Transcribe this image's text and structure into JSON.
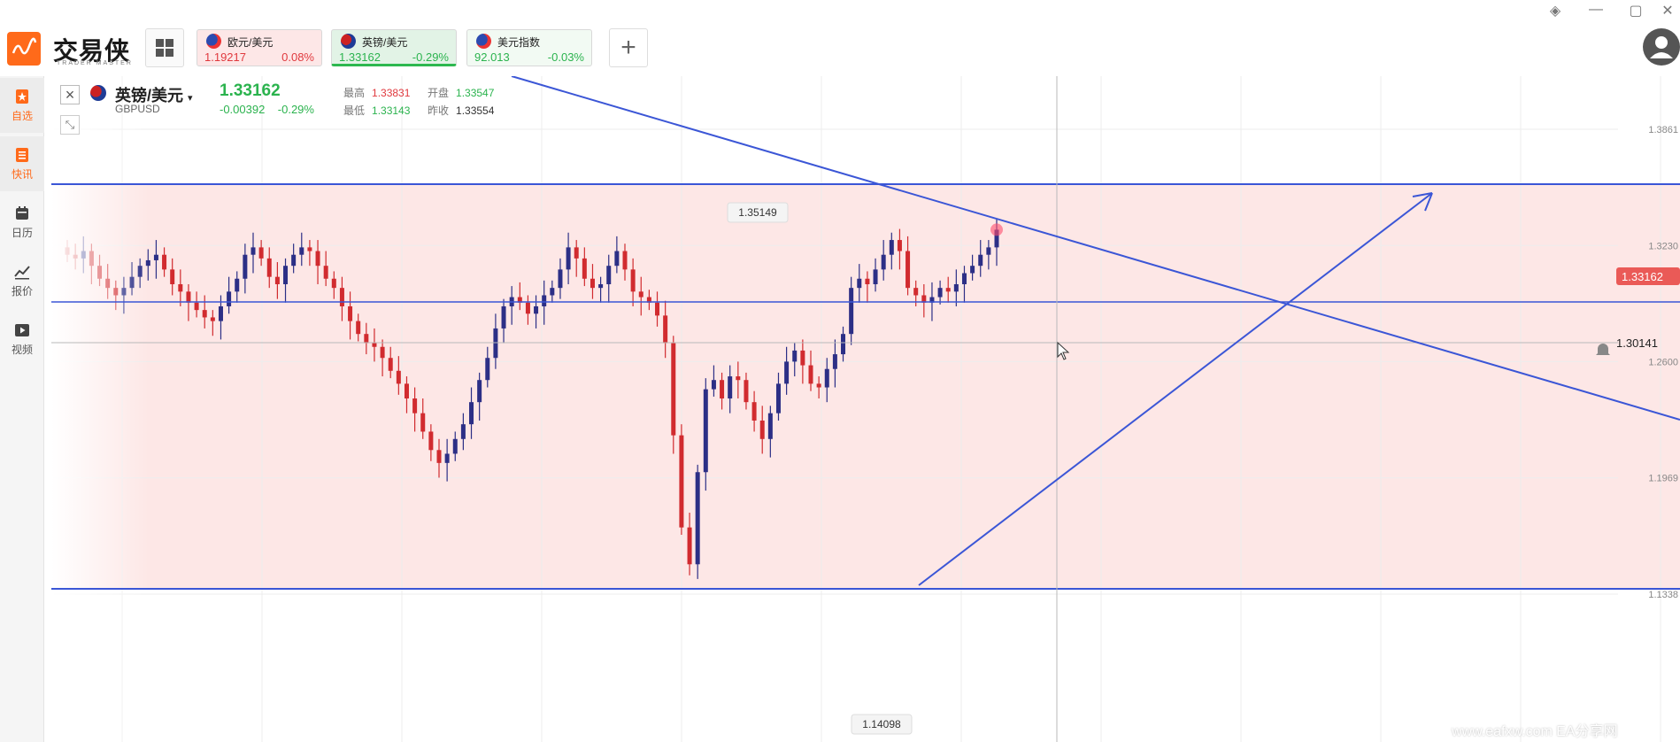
{
  "app": {
    "brand": "交易侠",
    "brand_sub": "TRADER MASTER"
  },
  "quote_tabs": [
    {
      "name": "欧元/美元",
      "price": "1.19217",
      "change": "0.08%",
      "style": "red",
      "price_color": "#e0393e",
      "change_color": "#e0393e"
    },
    {
      "name": "英镑/美元",
      "price": "1.33162",
      "change": "-0.29%",
      "style": "green",
      "price_color": "#2bb34e",
      "change_color": "#2bb34e"
    },
    {
      "name": "美元指数",
      "price": "92.013",
      "change": "-0.03%",
      "style": "white",
      "price_color": "#2bb34e",
      "change_color": "#2bb34e"
    }
  ],
  "sidebar": {
    "items": [
      {
        "label": "自选",
        "icon": "star-bookmark-icon",
        "active": true
      },
      {
        "label": "快讯",
        "icon": "news-list-icon",
        "active": true
      },
      {
        "label": "日历",
        "icon": "calendar-icon",
        "active": false
      },
      {
        "label": "报价",
        "icon": "trend-line-icon",
        "active": false
      },
      {
        "label": "视频",
        "icon": "play-icon",
        "active": false
      }
    ]
  },
  "symbol": {
    "name": "英镑/美元",
    "code": "GBPUSD",
    "price": "1.33162",
    "change": "-0.00392",
    "change_pct": "-0.29%",
    "stats": {
      "high_label": "最高",
      "high": "1.33831",
      "open_label": "开盘",
      "open": "1.33547",
      "low_label": "最低",
      "low": "1.33143",
      "prev_label": "昨收",
      "prev": "1.33554"
    }
  },
  "chart_data": {
    "type": "candlestick",
    "y_ticks": [
      "1.3861",
      "1.3230",
      "1.2600",
      "1.1969",
      "1.1338"
    ],
    "current_price_tag": "1.33162",
    "cursor_price_tag": "1.30141",
    "annotations": [
      {
        "label": "1.35149",
        "kind": "high"
      },
      {
        "label": "1.14098",
        "kind": "low"
      }
    ],
    "colors": {
      "up": "#2c2f86",
      "down": "#d12b2f",
      "band": "#fde7e6",
      "trendline": "#3b56d6"
    }
  },
  "watermark": "www.eafxw.com   EA分享网"
}
